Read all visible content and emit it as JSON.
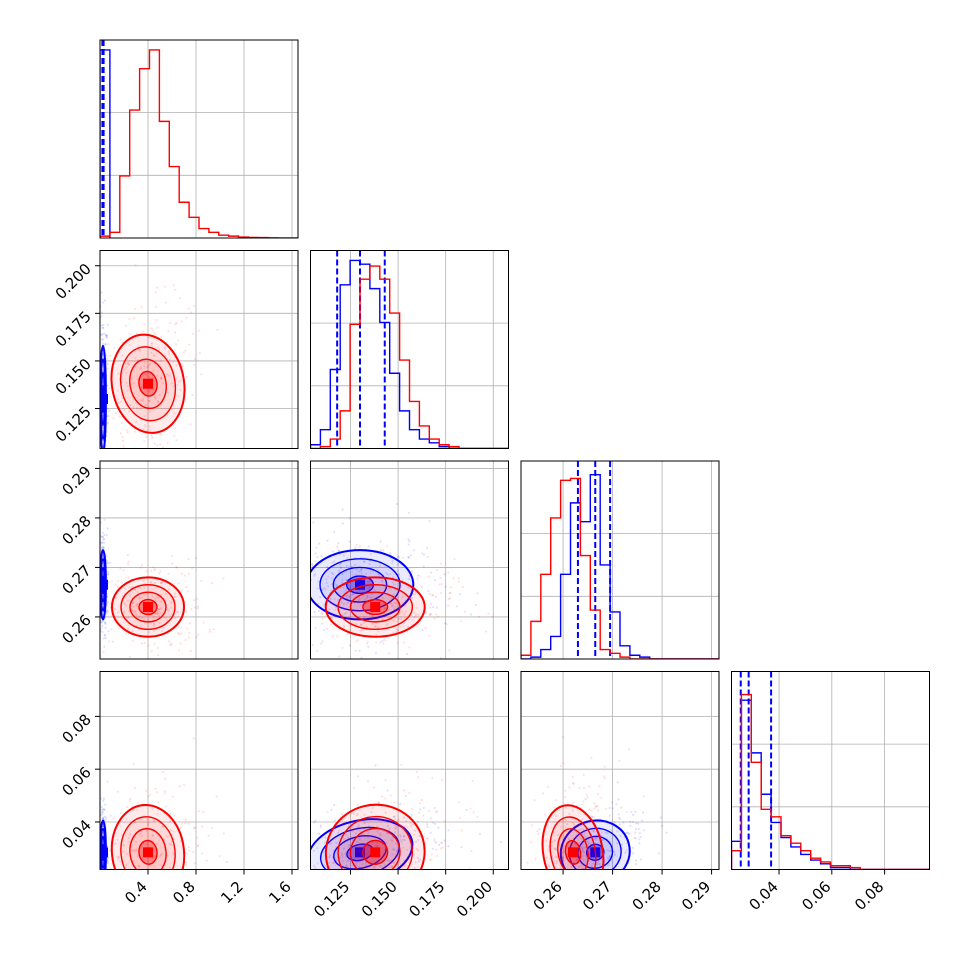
{
  "chart_data": {
    "type": "corner",
    "colors": {
      "blue": "#0000ff",
      "red": "#ff0000",
      "grid": "#b0b0b0"
    },
    "grid": true,
    "parameters": [
      {
        "range": [
          0.0,
          1.65
        ],
        "ticks": [
          0.4,
          0.8,
          1.2,
          1.6
        ],
        "tick_labels": [
          "0.4",
          "0.8",
          "1.2",
          "1.6"
        ]
      },
      {
        "range": [
          0.104,
          0.208
        ],
        "ticks": [
          0.125,
          0.15,
          0.175,
          0.2
        ],
        "tick_labels": [
          "0.125",
          "0.150",
          "0.175",
          "0.200"
        ]
      },
      {
        "range": [
          0.2515,
          0.2915
        ],
        "ticks": [
          0.26,
          0.27,
          0.28,
          0.29
        ],
        "tick_labels": [
          "0.26",
          "0.27",
          "0.28",
          "0.29"
        ]
      },
      {
        "range": [
          0.022,
          0.097
        ],
        "ticks": [
          0.04,
          0.06,
          0.08
        ],
        "tick_labels": [
          "0.04",
          "0.06",
          "0.08"
        ]
      }
    ],
    "series": [
      {
        "color": "#0000ff",
        "quantiles": [
          [
            0.02,
            0.025,
            0.03
          ],
          [
            0.118,
            0.13,
            0.143
          ],
          [
            0.263,
            0.2665,
            0.2695
          ],
          [
            0.0255,
            0.0285,
            0.037
          ]
        ],
        "centers": [
          0.025,
          0.13,
          0.2665,
          0.0285
        ],
        "widths": [
          0.012,
          0.014,
          0.0035,
          0.006
        ],
        "correlations": [
          [
            1,
            0,
            0,
            0
          ],
          [
            0,
            1,
            0,
            0.4
          ],
          [
            0,
            0,
            1,
            0.5
          ],
          [
            0,
            0.4,
            0.5,
            1
          ]
        ],
        "histograms": [
          {
            "edges": [
              0.0,
              0.0825
            ],
            "counts": [
              1.0
            ]
          },
          {
            "edges": [
              0.104,
              0.1092,
              0.1144,
              0.1196,
              0.1248,
              0.13,
              0.1352,
              0.1404,
              0.1456,
              0.1508,
              0.156,
              0.1612,
              0.1664,
              0.1716,
              0.1768,
              0.182,
              0.1872,
              0.1924,
              0.1976,
              0.2028,
              0.208
            ],
            "counts": [
              0.02,
              0.1,
              0.42,
              0.87,
              1.0,
              0.98,
              0.85,
              0.67,
              0.4,
              0.2,
              0.1,
              0.05,
              0.03,
              0.01,
              0,
              0,
              0,
              0,
              0,
              0
            ]
          },
          {
            "edges": [
              0.2515,
              0.2535,
              0.2555,
              0.2575,
              0.2595,
              0.2615,
              0.2635,
              0.2655,
              0.2675,
              0.2695,
              0.2715,
              0.2735,
              0.2755,
              0.2775,
              0.2795,
              0.2815,
              0.2835,
              0.2855,
              0.2875,
              0.2895,
              0.2915
            ],
            "counts": [
              0,
              0.01,
              0.05,
              0.12,
              0.45,
              0.83,
              0.73,
              0.98,
              0.5,
              0.25,
              0.07,
              0.02,
              0.01,
              0,
              0,
              0,
              0,
              0,
              0,
              0
            ]
          },
          {
            "edges": [
              0.022,
              0.02575,
              0.0295,
              0.03325,
              0.037,
              0.04075,
              0.0445,
              0.04825,
              0.052,
              0.05575,
              0.0595,
              0.06325,
              0.067,
              0.07075,
              0.0745,
              0.07825,
              0.082,
              0.08575,
              0.0895,
              0.09325,
              0.097
            ],
            "counts": [
              0.15,
              0.9,
              0.62,
              0.4,
              0.25,
              0.17,
              0.12,
              0.08,
              0.05,
              0.03,
              0.01,
              0.01,
              0,
              0,
              0,
              0,
              0,
              0,
              0,
              0
            ]
          }
        ]
      },
      {
        "color": "#ff0000",
        "quantiles": [
          null,
          null,
          null,
          null
        ],
        "centers": [
          0.4,
          0.138,
          0.262,
          0.0285
        ],
        "widths": [
          0.15,
          0.013,
          0.003,
          0.009
        ],
        "correlations": [
          [
            1,
            0.3,
            0,
            0.2
          ],
          [
            0.3,
            1,
            0,
            0.45
          ],
          [
            0,
            0,
            1,
            0.3
          ],
          [
            0.2,
            0.45,
            0.3,
            1
          ]
        ],
        "histograms": [
          {
            "edges": [
              0.0,
              0.0825,
              0.165,
              0.2475,
              0.33,
              0.4125,
              0.495,
              0.5775,
              0.66,
              0.7425,
              0.825,
              0.9075,
              0.99,
              1.0725,
              1.155,
              1.2375,
              1.32,
              1.4025,
              1.485,
              1.5675,
              1.65
            ],
            "counts": [
              0.01,
              0.03,
              0.33,
              0.68,
              0.9,
              1.0,
              0.62,
              0.38,
              0.19,
              0.11,
              0.05,
              0.03,
              0.015,
              0.01,
              0.005,
              0.003,
              0.002,
              0.001,
              0,
              0
            ]
          },
          {
            "edges": [
              0.104,
              0.1092,
              0.1144,
              0.1196,
              0.1248,
              0.13,
              0.1352,
              0.1404,
              0.1456,
              0.1508,
              0.156,
              0.1612,
              0.1664,
              0.1716,
              0.1768,
              0.182,
              0.1872,
              0.1924,
              0.1976,
              0.2028,
              0.208
            ],
            "counts": [
              0,
              0.01,
              0.05,
              0.2,
              0.66,
              0.9,
              0.97,
              0.9,
              0.72,
              0.47,
              0.25,
              0.12,
              0.05,
              0.02,
              0.01,
              0,
              0,
              0,
              0,
              0
            ]
          },
          {
            "edges": [
              0.2515,
              0.2535,
              0.2555,
              0.2575,
              0.2595,
              0.2615,
              0.2635,
              0.2655,
              0.2675,
              0.2695,
              0.2715,
              0.2735,
              0.2755,
              0.2775,
              0.2795,
              0.2815,
              0.2835,
              0.2855,
              0.2875,
              0.2895,
              0.2915
            ],
            "counts": [
              0.02,
              0.2,
              0.45,
              0.75,
              0.95,
              0.96,
              0.55,
              0.26,
              0.05,
              0.03,
              0.01,
              0,
              0,
              0,
              0,
              0,
              0,
              0,
              0,
              0
            ]
          },
          {
            "edges": [
              0.022,
              0.02575,
              0.0295,
              0.03325,
              0.037,
              0.04075,
              0.0445,
              0.04825,
              0.052,
              0.05575,
              0.0595,
              0.06325,
              0.067,
              0.07075,
              0.0745,
              0.07825,
              0.082,
              0.08575,
              0.0895,
              0.09325,
              0.097
            ],
            "counts": [
              0.1,
              0.93,
              0.57,
              0.32,
              0.28,
              0.18,
              0.14,
              0.1,
              0.06,
              0.04,
              0.02,
              0.02,
              0.01,
              0,
              0,
              0,
              0,
              0,
              0,
              0
            ]
          }
        ]
      }
    ]
  }
}
